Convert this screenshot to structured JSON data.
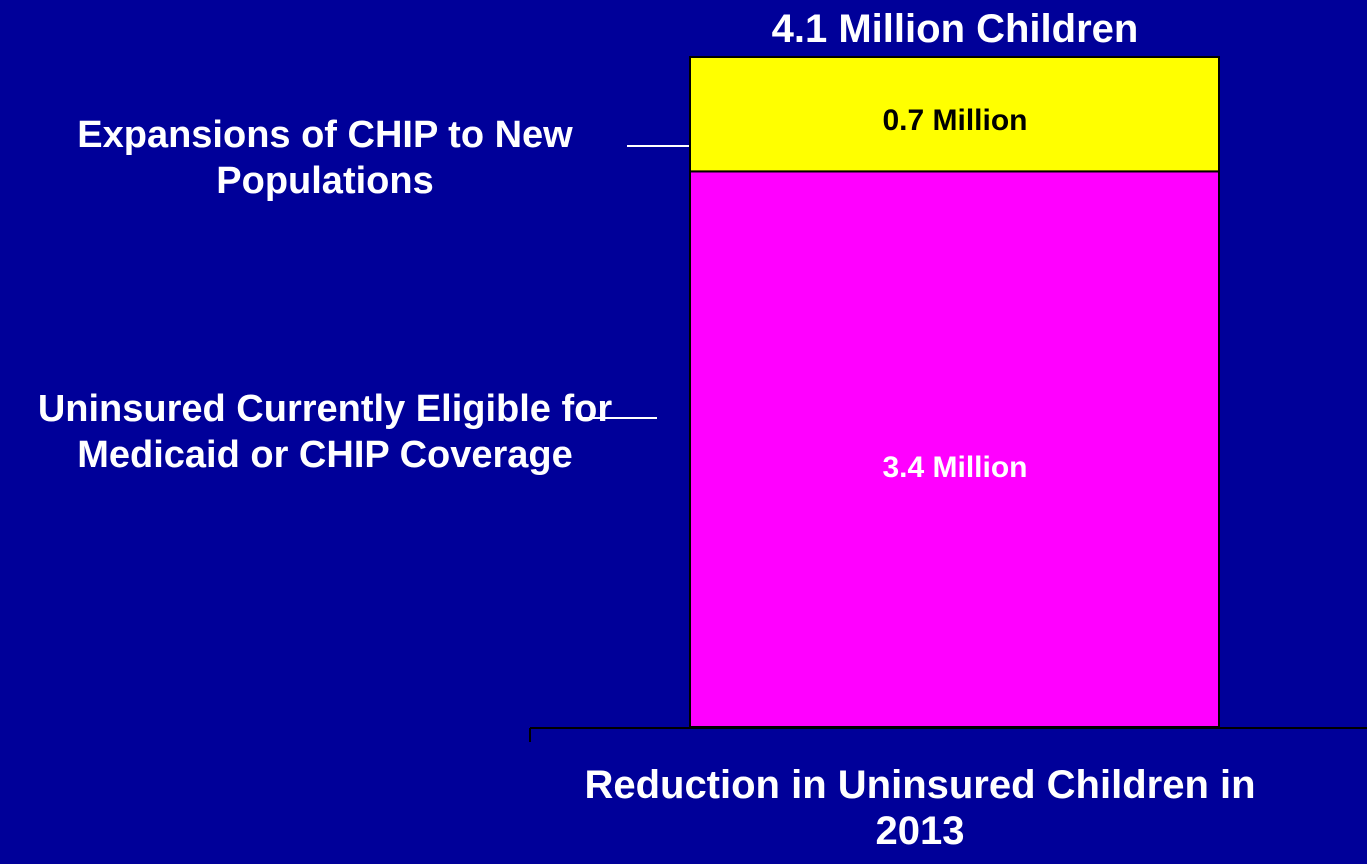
{
  "chart_data": {
    "type": "bar",
    "stacked": true,
    "total_label": "4.1 Million Children",
    "categories": [
      "Reduction in Uninsured Children in 2013"
    ],
    "series": [
      {
        "name": "Uninsured Currently Eligible for Medicaid or CHIP Coverage",
        "values": [
          3.4
        ],
        "data_label": "3.4 Million",
        "color": "#ff00ff"
      },
      {
        "name": "Expansions of CHIP to New Populations",
        "values": [
          0.7
        ],
        "data_label": "0.7 Million",
        "color": "#ffff00"
      }
    ],
    "ylim": [
      0,
      4.1
    ],
    "grid": false,
    "legend": "left, leader lines"
  },
  "colors": {
    "background": "#000099",
    "text": "#ffffff",
    "bar_outline": "#000000"
  }
}
